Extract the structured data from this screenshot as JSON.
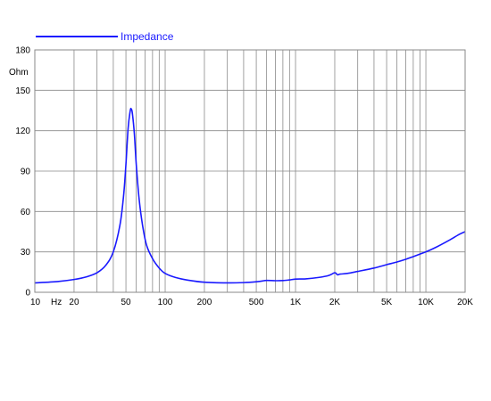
{
  "colors": {
    "series": "#1a1aff",
    "legend_text": "#1a1aff",
    "grid": "#8a8a8a",
    "frame": "#8a8a8a",
    "background": "#ffffff",
    "text": "#000000"
  },
  "chart_data": {
    "type": "line",
    "title": "",
    "xlabel": "",
    "ylabel": "",
    "x_unit": "Hz",
    "y_unit": "Ohm",
    "x_scale": "log",
    "xlim": [
      10,
      20000
    ],
    "ylim": [
      0,
      180
    ],
    "grid": true,
    "legend_position": "top-left",
    "x_ticks": [
      {
        "value": 10,
        "label": "10"
      },
      {
        "value": 20,
        "label": "20"
      },
      {
        "value": 50,
        "label": "50"
      },
      {
        "value": 100,
        "label": "100"
      },
      {
        "value": 200,
        "label": "200"
      },
      {
        "value": 500,
        "label": "500"
      },
      {
        "value": 1000,
        "label": "1K"
      },
      {
        "value": 2000,
        "label": "2K"
      },
      {
        "value": 5000,
        "label": "5K"
      },
      {
        "value": 10000,
        "label": "10K"
      },
      {
        "value": 20000,
        "label": "20K"
      }
    ],
    "y_ticks": [
      0,
      30,
      60,
      90,
      120,
      150,
      180
    ],
    "series": [
      {
        "name": "Impedance",
        "color": "#1a1aff",
        "points": [
          [
            10,
            7
          ],
          [
            15,
            8
          ],
          [
            20,
            9.5
          ],
          [
            25,
            11.5
          ],
          [
            30,
            14.5
          ],
          [
            35,
            20
          ],
          [
            40,
            30
          ],
          [
            45,
            50
          ],
          [
            48,
            72
          ],
          [
            50,
            95
          ],
          [
            52,
            122
          ],
          [
            54,
            135
          ],
          [
            55,
            136
          ],
          [
            56,
            133
          ],
          [
            58,
            118
          ],
          [
            60,
            95
          ],
          [
            63,
            70
          ],
          [
            67,
            50
          ],
          [
            72,
            35
          ],
          [
            80,
            25
          ],
          [
            90,
            18
          ],
          [
            100,
            14
          ],
          [
            120,
            11
          ],
          [
            150,
            9
          ],
          [
            200,
            7.5
          ],
          [
            300,
            7
          ],
          [
            400,
            7.2
          ],
          [
            500,
            7.8
          ],
          [
            550,
            8.3
          ],
          [
            600,
            8.8
          ],
          [
            700,
            8.6
          ],
          [
            800,
            8.7
          ],
          [
            900,
            9.2
          ],
          [
            1000,
            9.8
          ],
          [
            1200,
            10
          ],
          [
            1500,
            11
          ],
          [
            1800,
            12.5
          ],
          [
            2000,
            14.5
          ],
          [
            2100,
            13
          ],
          [
            2200,
            13.5
          ],
          [
            2500,
            14
          ],
          [
            3000,
            15.5
          ],
          [
            4000,
            18
          ],
          [
            5000,
            20.5
          ],
          [
            6000,
            22.5
          ],
          [
            7000,
            24.5
          ],
          [
            8000,
            26.5
          ],
          [
            10000,
            30
          ],
          [
            12000,
            33.5
          ],
          [
            15000,
            38.5
          ],
          [
            18000,
            43
          ],
          [
            20000,
            45
          ]
        ]
      }
    ]
  }
}
